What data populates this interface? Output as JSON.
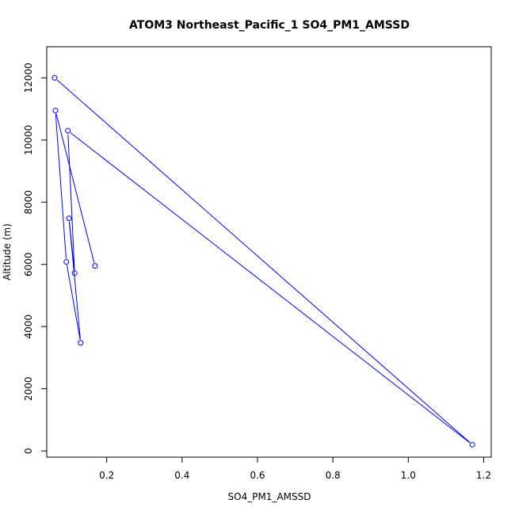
{
  "chart_data": {
    "type": "line",
    "title": "ATOM3 Northeast_Pacific_1 SO4_PM1_AMSSD",
    "xlabel": "SO4_PM1_AMSSD",
    "ylabel": "Altitude (m)",
    "xlim": [
      0.041,
      1.22
    ],
    "ylim": [
      -200,
      13000
    ],
    "x_ticks": [
      0.2,
      0.4,
      0.6,
      0.8,
      1.0,
      1.2
    ],
    "x_tick_labels": [
      "0.2",
      "0.4",
      "0.6",
      "0.8",
      "1.0",
      "1.2"
    ],
    "y_ticks": [
      0,
      2000,
      4000,
      6000,
      8000,
      10000,
      12000
    ],
    "y_tick_labels": [
      "0",
      "2000",
      "4000",
      "6000",
      "8000",
      "10000",
      "12000"
    ],
    "grid": false,
    "marker": "open-circle",
    "color": "#0000ff",
    "series": [
      {
        "points": [
          {
            "x": 0.062,
            "y": 12000
          },
          {
            "x": 1.17,
            "y": 200
          },
          {
            "x": 0.097,
            "y": 10300
          },
          {
            "x": 0.115,
            "y": 5720
          },
          {
            "x": 0.1,
            "y": 7480
          },
          {
            "x": 0.131,
            "y": 3480
          },
          {
            "x": 0.093,
            "y": 6080
          },
          {
            "x": 0.064,
            "y": 10950
          },
          {
            "x": 0.169,
            "y": 5950
          }
        ]
      }
    ]
  }
}
